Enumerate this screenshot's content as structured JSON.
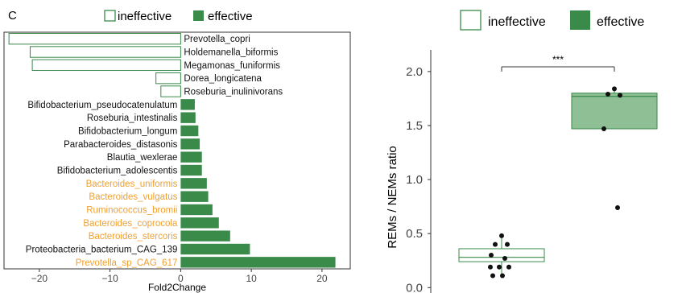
{
  "panel_label": "C",
  "colors": {
    "effective": "#3a8a4a",
    "ineffective_stroke": "#3a8a4a",
    "highlight_label": "#f0a030",
    "box_fill": "#8fbf95"
  },
  "chart_data": [
    {
      "type": "bar",
      "orientation": "horizontal",
      "legend": {
        "position": "top",
        "entries": [
          "ineffective",
          "effective"
        ]
      },
      "xlabel": "Fold2Change",
      "xlim": [
        -25,
        24
      ],
      "xticks": [
        -20,
        -10,
        0,
        10,
        20
      ],
      "grid": false,
      "categories": [
        "Prevotella_copri",
        "Holdemanella_biformis",
        "Megamonas_funiformis",
        "Dorea_longicatena",
        "Roseburia_inulinivorans",
        "Bifidobacterium_pseudocatenulatum",
        "Roseburia_intestinalis",
        "Bifidobacterium_longum",
        "Parabacteroides_distasonis",
        "Blautia_wexlerae",
        "Bifidobacterium_adolescentis",
        "Bacteroides_uniformis",
        "Bacteroides_vulgatus",
        "Ruminococcus_bromii",
        "Bacteroides_coprocola",
        "Bacteroides_stercoris",
        "Proteobacteria_bacterium_CAG_139",
        "Prevotella_sp_CAG_617"
      ],
      "values": [
        -24.3,
        -21.3,
        -21.0,
        -3.5,
        -2.8,
        2.0,
        2.1,
        2.5,
        2.7,
        3.0,
        3.0,
        3.7,
        3.9,
        4.5,
        5.4,
        7.0,
        9.8,
        21.9
      ],
      "group": [
        "ineffective",
        "ineffective",
        "ineffective",
        "ineffective",
        "ineffective",
        "effective",
        "effective",
        "effective",
        "effective",
        "effective",
        "effective",
        "effective",
        "effective",
        "effective",
        "effective",
        "effective",
        "effective",
        "effective"
      ],
      "highlighted": [
        "Bacteroides_uniformis",
        "Bacteroides_vulgatus",
        "Ruminococcus_bromii",
        "Bacteroides_coprocola",
        "Bacteroides_stercoris",
        "Prevotella_sp_CAG_617"
      ]
    },
    {
      "type": "box",
      "legend": {
        "position": "top",
        "entries": [
          "ineffective",
          "effective"
        ]
      },
      "ylabel": "REMs / NEMs ratio",
      "ylim": [
        -0.05,
        2.2
      ],
      "yticks": [
        "0.0",
        "0.5",
        "1.0",
        "1.5",
        "2.0"
      ],
      "grid": false,
      "significance": "***",
      "groups": [
        {
          "name": "ineffective",
          "q1": 0.24,
          "median": 0.28,
          "q3": 0.36,
          "whisker_low": 0.1,
          "whisker_high": 0.48,
          "points": [
            0.48,
            0.4,
            0.4,
            0.3,
            0.27,
            0.19,
            0.19,
            0.19,
            0.11,
            0.11
          ]
        },
        {
          "name": "effective",
          "q1": 1.47,
          "median": 1.77,
          "q3": 1.8,
          "whisker_low": 1.47,
          "whisker_high": 1.84,
          "points": [
            1.84,
            1.79,
            1.78,
            1.47,
            0.74
          ]
        }
      ]
    }
  ]
}
